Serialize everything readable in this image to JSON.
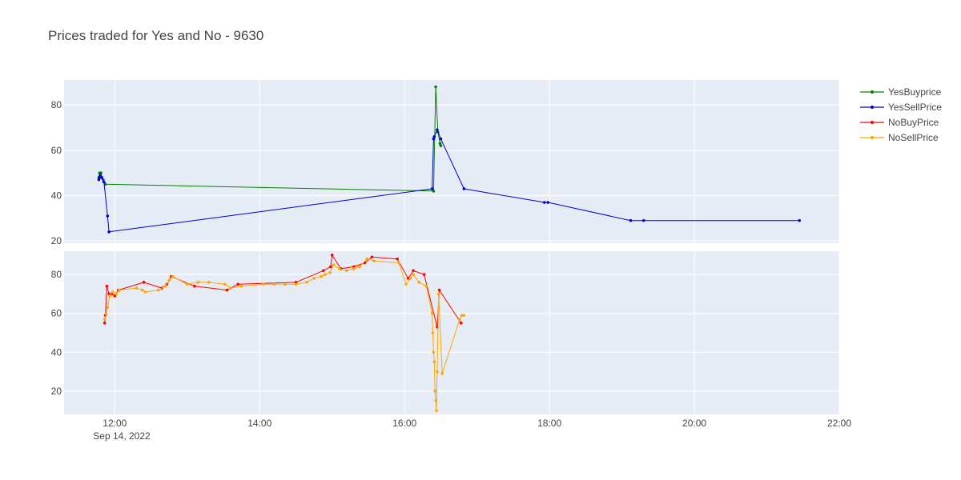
{
  "chart_data": {
    "type": "line",
    "title": "Prices traded for Yes and No - 9630",
    "x_axis": {
      "ticks": [
        "12:00",
        "14:00",
        "16:00",
        "18:00",
        "20:00",
        "22:00"
      ],
      "tick_hours": [
        12,
        14,
        16,
        18,
        20,
        22
      ],
      "date_label": "Sep 14, 2022",
      "range_hours": [
        11.3,
        22.0
      ]
    },
    "grid": true,
    "legend_position": "top-right",
    "panels": [
      {
        "id": "yes",
        "ylim": [
          19,
          91
        ],
        "yticks": [
          20,
          40,
          60,
          80
        ],
        "series": [
          {
            "name": "YesBuyprice",
            "color": "#008000",
            "x": [
              11.78,
              11.79,
              11.8,
              11.81,
              11.82,
              11.84,
              11.87,
              16.4,
              16.43,
              16.46,
              16.49,
              16.5
            ],
            "y": [
              48,
              50,
              49,
              50,
              48,
              47,
              45,
              42,
              88,
              68,
              63,
              62
            ]
          },
          {
            "name": "YesSellPrice",
            "color": "#0000cd",
            "x": [
              11.78,
              11.79,
              11.8,
              11.82,
              11.85,
              11.9,
              11.92,
              16.38,
              16.4,
              16.41,
              16.45,
              16.5,
              16.82,
              17.93,
              17.98,
              19.12,
              19.3,
              21.45
            ],
            "y": [
              47,
              48,
              49,
              48,
              46,
              31,
              24,
              43,
              65,
              66,
              69,
              65,
              43,
              37,
              37,
              29,
              29,
              29
            ]
          }
        ]
      },
      {
        "id": "no",
        "ylim": [
          8,
          92
        ],
        "yticks": [
          20,
          40,
          60,
          80
        ],
        "series": [
          {
            "name": "NoBuyPrice",
            "color": "#ff0000",
            "x": [
              11.86,
              11.87,
              11.89,
              11.92,
              11.96,
              12.0,
              12.05,
              12.4,
              12.65,
              12.72,
              12.78,
              13.1,
              13.55,
              13.7,
              14.5,
              14.88,
              14.98,
              15.0,
              15.12,
              15.3,
              15.45,
              15.55,
              15.9,
              16.05,
              16.12,
              16.27,
              16.45,
              16.48,
              16.78
            ],
            "y": [
              55,
              59,
              74,
              70,
              70,
              69,
              72,
              76,
              73,
              75,
              79,
              74,
              72,
              75,
              76,
              82,
              84,
              90,
              83,
              84,
              86,
              89,
              88,
              78,
              82,
              80,
              53,
              72,
              55
            ]
          },
          {
            "name": "NoSellPrice",
            "color": "#ffa500",
            "x": [
              11.86,
              11.88,
              11.9,
              11.93,
              11.97,
              12.02,
              12.06,
              12.3,
              12.38,
              12.42,
              12.6,
              12.7,
              12.75,
              12.8,
              13.0,
              13.15,
              13.3,
              13.52,
              13.6,
              13.75,
              14.05,
              14.2,
              14.35,
              14.5,
              14.65,
              14.75,
              14.85,
              14.9,
              14.97,
              15.02,
              15.1,
              15.2,
              15.3,
              15.38,
              15.48,
              15.58,
              15.92,
              16.02,
              16.08,
              16.12,
              16.2,
              16.3,
              16.38,
              16.39,
              16.4,
              16.41,
              16.42,
              16.43,
              16.44,
              16.45,
              16.47,
              16.52,
              16.76,
              16.79,
              16.82
            ],
            "y": [
              57,
              60,
              63,
              69,
              71,
              70,
              72,
              73,
              72,
              71,
              72,
              74,
              77,
              79,
              75,
              76,
              76,
              75,
              73,
              74,
              75,
              75,
              75,
              75,
              76,
              78,
              79,
              80,
              81,
              85,
              83,
              82,
              83,
              84,
              88,
              87,
              86,
              75,
              78,
              80,
              76,
              74,
              60,
              50,
              40,
              35,
              20,
              15,
              10,
              30,
              70,
              29,
              57,
              59,
              59
            ]
          }
        ]
      }
    ]
  }
}
